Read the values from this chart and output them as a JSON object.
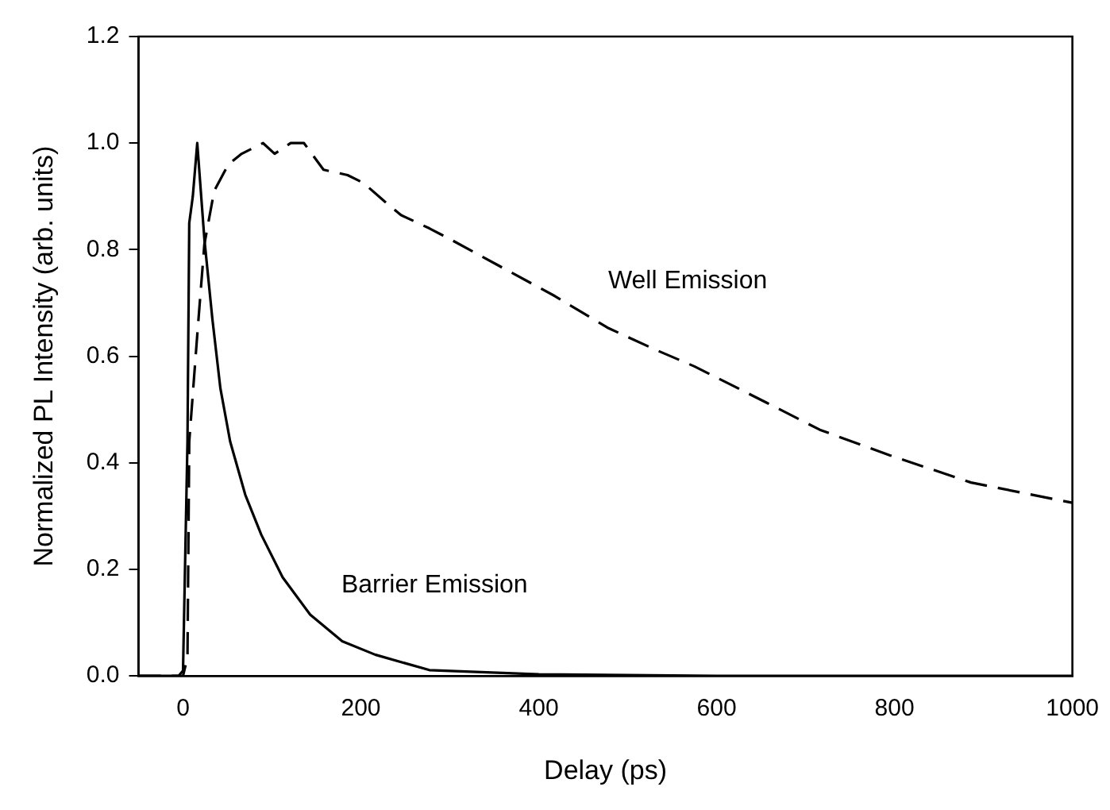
{
  "chart_data": {
    "type": "line",
    "xlabel": "Delay (ps)",
    "ylabel": "Normalized PL Intensity (arb. units)",
    "xlim": [
      -50,
      1000
    ],
    "xticks": [
      0,
      200,
      400,
      600,
      800,
      1000
    ],
    "ylim": [
      0,
      1.2
    ],
    "yticks": [
      {
        "value": 0,
        "label": "0.0"
      },
      0.2,
      0.4,
      0.6,
      0.8,
      {
        "value": 1,
        "label": "1.0"
      },
      1.2
    ],
    "marker": "none",
    "legend": false,
    "series": [
      {
        "name": "Barrier Emission",
        "color": "#000000",
        "line_style": "solid",
        "x": [
          -50,
          -5,
          0,
          5,
          7,
          11,
          16,
          24,
          33,
          42,
          53,
          70,
          88,
          112,
          143,
          179,
          216,
          277,
          400,
          600,
          800,
          1000
        ],
        "values": [
          0,
          0,
          0.01,
          0.44,
          0.85,
          0.9,
          1.0,
          0.82,
          0.67,
          0.54,
          0.44,
          0.34,
          0.265,
          0.185,
          0.115,
          0.065,
          0.04,
          0.011,
          0.003,
          0,
          0,
          0
        ]
      },
      {
        "name": "Well Emission",
        "color": "#000000",
        "line_style": "dashed",
        "x": [
          -50,
          0,
          5,
          7,
          16,
          24,
          35,
          51,
          66,
          90,
          103,
          121,
          136,
          158,
          185,
          203,
          227,
          245,
          277,
          300,
          355,
          418,
          478,
          533,
          575,
          656,
          716,
          795,
          886,
          1000
        ],
        "values": [
          0,
          0,
          0.035,
          0.44,
          0.64,
          0.81,
          0.91,
          0.96,
          0.98,
          1.0,
          0.98,
          1.0,
          1.0,
          0.95,
          0.94,
          0.925,
          0.89,
          0.865,
          0.84,
          0.82,
          0.77,
          0.713,
          0.653,
          0.611,
          0.581,
          0.513,
          0.462,
          0.414,
          0.363,
          0.325
        ]
      }
    ]
  }
}
